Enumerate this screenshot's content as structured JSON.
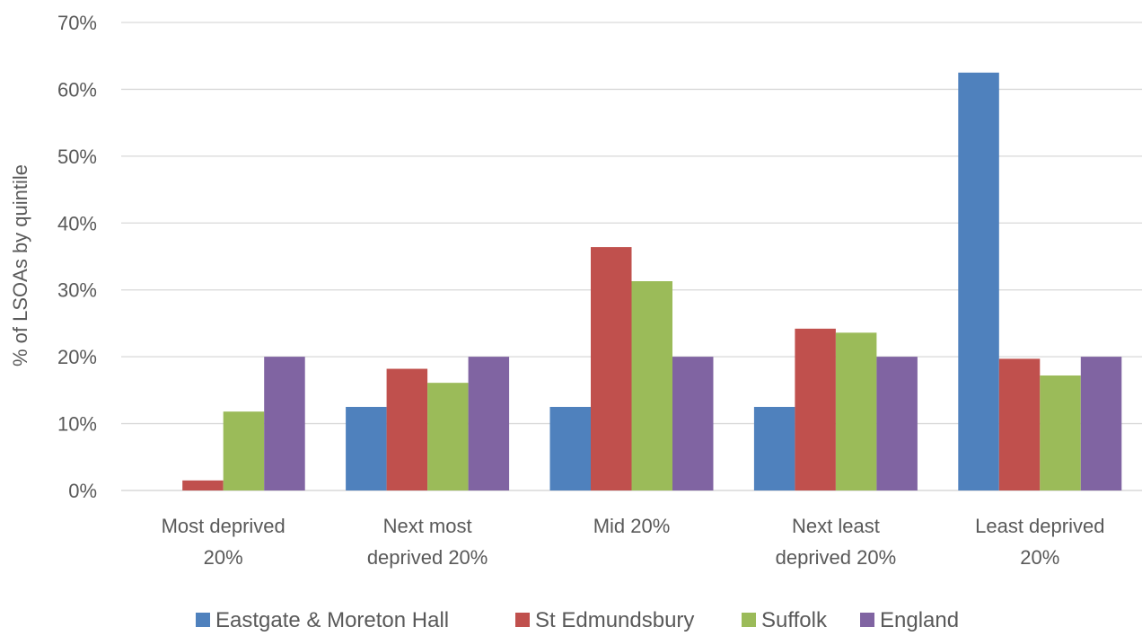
{
  "chart_data": {
    "type": "bar",
    "title": "",
    "xlabel": "",
    "ylabel": "% of LSOAs by quintile",
    "ylim": [
      0,
      70
    ],
    "yticks": [
      "0%",
      "10%",
      "20%",
      "30%",
      "40%",
      "50%",
      "60%",
      "70%"
    ],
    "ytick_values": [
      0,
      10,
      20,
      30,
      40,
      50,
      60,
      70
    ],
    "grid": true,
    "legend_position": "bottom",
    "categories": [
      [
        "Most deprived",
        "20%"
      ],
      [
        "Next most",
        "deprived 20%"
      ],
      [
        "Mid 20%"
      ],
      [
        "Next least",
        "deprived 20%"
      ],
      [
        "Least deprived",
        "20%"
      ]
    ],
    "series": [
      {
        "name": "Eastgate & Moreton Hall",
        "color": "#4f81bd",
        "values": [
          0,
          12.5,
          12.5,
          12.5,
          62.5
        ]
      },
      {
        "name": "St Edmundsbury",
        "color": "#c0504d",
        "values": [
          1.5,
          18.2,
          36.4,
          24.2,
          19.7
        ]
      },
      {
        "name": "Suffolk",
        "color": "#9bbb59",
        "values": [
          11.8,
          16.1,
          31.3,
          23.6,
          17.2
        ]
      },
      {
        "name": "England",
        "color": "#8064a2",
        "values": [
          20,
          20,
          20,
          20,
          20
        ]
      }
    ]
  }
}
